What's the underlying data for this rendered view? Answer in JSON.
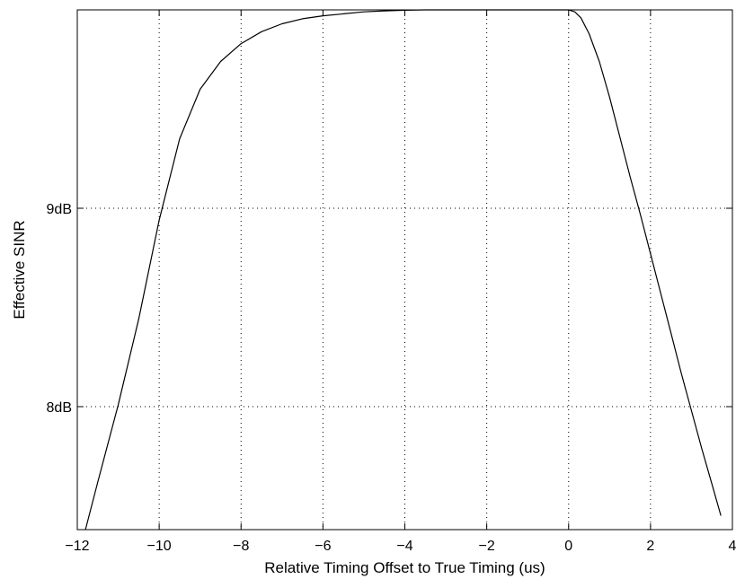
{
  "chart_data": {
    "type": "line",
    "title": "",
    "xlabel": "Relative Timing Offset to True Timing (us)",
    "ylabel": "Effective SINR",
    "xlim": [
      -12,
      4
    ],
    "ylim": [
      7.38,
      10.0
    ],
    "xticks": [
      -12,
      -10,
      -8,
      -6,
      -4,
      -2,
      0,
      2,
      4
    ],
    "xtick_labels": [
      "−12",
      "−10",
      "−8",
      "−6",
      "−4",
      "−2",
      "0",
      "2",
      "4"
    ],
    "yticks": [
      8,
      9
    ],
    "ytick_labels": [
      "8dB",
      "9dB"
    ],
    "grid": true,
    "grid_style": "dotted",
    "line_color": "#000000",
    "series": [
      {
        "x": [
          -11.8,
          -11.5,
          -11.0,
          -10.5,
          -10.0,
          -9.5,
          -9.0,
          -8.5,
          -8.0,
          -7.5,
          -7.0,
          -6.5,
          -6.0,
          -5.5,
          -5.0,
          -4.5,
          -4.0,
          -3.5,
          -3.0,
          -2.0,
          -1.0,
          0.0,
          0.15,
          0.3,
          0.5,
          0.75,
          1.0,
          1.25,
          1.5,
          1.75,
          2.0,
          2.25,
          2.5,
          2.75,
          3.0,
          3.25,
          3.5,
          3.72
        ],
        "values": [
          7.38,
          7.62,
          8.01,
          8.44,
          8.94,
          9.35,
          9.6,
          9.74,
          9.83,
          9.89,
          9.93,
          9.955,
          9.97,
          9.98,
          9.99,
          9.995,
          9.998,
          10.0,
          10.0,
          10.0,
          10.0,
          10.0,
          9.99,
          9.96,
          9.88,
          9.74,
          9.56,
          9.36,
          9.16,
          8.97,
          8.77,
          8.57,
          8.37,
          8.17,
          7.98,
          7.79,
          7.61,
          7.45
        ]
      }
    ]
  }
}
